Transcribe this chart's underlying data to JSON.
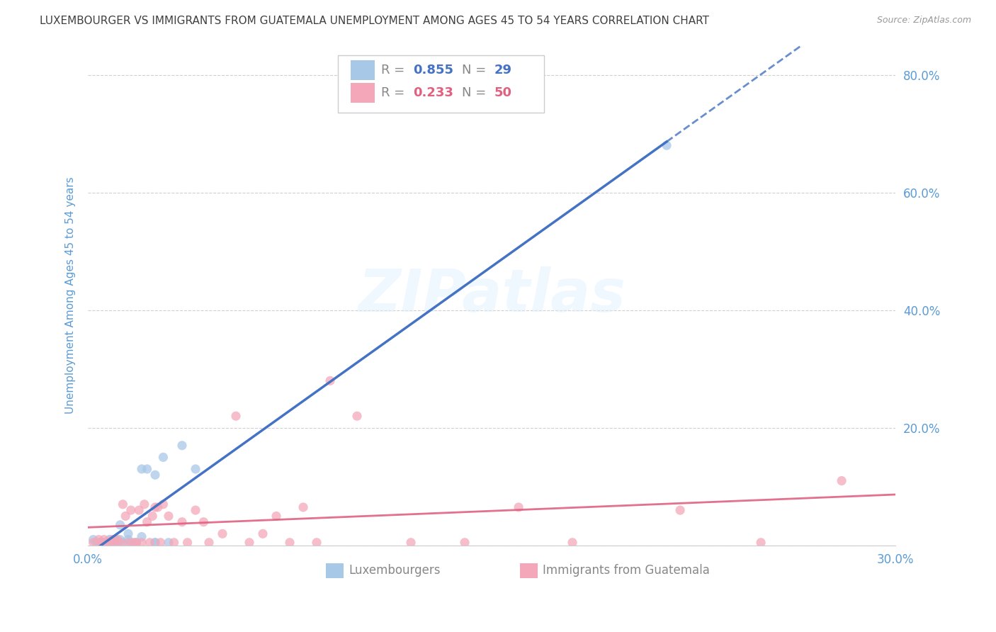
{
  "title": "LUXEMBOURGER VS IMMIGRANTS FROM GUATEMALA UNEMPLOYMENT AMONG AGES 45 TO 54 YEARS CORRELATION CHART",
  "source": "Source: ZipAtlas.com",
  "ylabel": "Unemployment Among Ages 45 to 54 years",
  "xlim": [
    0.0,
    0.3
  ],
  "ylim": [
    0.0,
    0.85
  ],
  "blue_R": 0.855,
  "blue_N": 29,
  "pink_R": 0.233,
  "pink_N": 50,
  "blue_color": "#a8c8e8",
  "blue_line_color": "#4472c4",
  "pink_color": "#f4a7b9",
  "pink_line_color": "#e06080",
  "watermark": "ZIPatlas",
  "legend_label_blue": "Luxembourgers",
  "legend_label_pink": "Immigrants from Guatemala",
  "blue_scatter_x": [
    0.002,
    0.003,
    0.004,
    0.005,
    0.006,
    0.007,
    0.008,
    0.009,
    0.01,
    0.01,
    0.011,
    0.012,
    0.013,
    0.015,
    0.016,
    0.018,
    0.02,
    0.022,
    0.025,
    0.028,
    0.03,
    0.035,
    0.04,
    0.012,
    0.015,
    0.02,
    0.025,
    0.215,
    0.025
  ],
  "blue_scatter_y": [
    0.01,
    0.005,
    0.005,
    0.005,
    0.005,
    0.005,
    0.01,
    0.005,
    0.01,
    0.01,
    0.005,
    0.01,
    0.005,
    0.01,
    0.005,
    0.005,
    0.13,
    0.13,
    0.005,
    0.15,
    0.005,
    0.17,
    0.13,
    0.035,
    0.02,
    0.015,
    0.12,
    0.68,
    0.005
  ],
  "pink_scatter_x": [
    0.002,
    0.004,
    0.005,
    0.006,
    0.007,
    0.008,
    0.009,
    0.01,
    0.011,
    0.012,
    0.013,
    0.014,
    0.015,
    0.016,
    0.017,
    0.018,
    0.019,
    0.02,
    0.021,
    0.022,
    0.023,
    0.024,
    0.025,
    0.026,
    0.027,
    0.028,
    0.03,
    0.032,
    0.035,
    0.037,
    0.04,
    0.043,
    0.045,
    0.05,
    0.055,
    0.06,
    0.065,
    0.07,
    0.075,
    0.08,
    0.085,
    0.09,
    0.1,
    0.12,
    0.14,
    0.16,
    0.18,
    0.22,
    0.25,
    0.28
  ],
  "pink_scatter_y": [
    0.005,
    0.01,
    0.005,
    0.01,
    0.005,
    0.005,
    0.01,
    0.005,
    0.01,
    0.005,
    0.07,
    0.05,
    0.005,
    0.06,
    0.005,
    0.005,
    0.06,
    0.005,
    0.07,
    0.04,
    0.005,
    0.05,
    0.065,
    0.065,
    0.005,
    0.07,
    0.05,
    0.005,
    0.04,
    0.005,
    0.06,
    0.04,
    0.005,
    0.02,
    0.22,
    0.005,
    0.02,
    0.05,
    0.005,
    0.065,
    0.005,
    0.28,
    0.22,
    0.005,
    0.005,
    0.065,
    0.005,
    0.06,
    0.005,
    0.11
  ],
  "background_color": "#ffffff",
  "grid_color": "#d0d0d0",
  "title_color": "#404040",
  "axis_label_color": "#5b9bd5",
  "tick_color": "#5b9bd5",
  "blue_line_start_x": 0.0,
  "blue_line_start_y": 0.0,
  "blue_line_end_solid_x": 0.215,
  "blue_line_end_x": 0.3,
  "pink_line_start_x": 0.0,
  "pink_line_start_y": 0.02,
  "pink_line_end_x": 0.3,
  "pink_line_end_y": 0.12
}
